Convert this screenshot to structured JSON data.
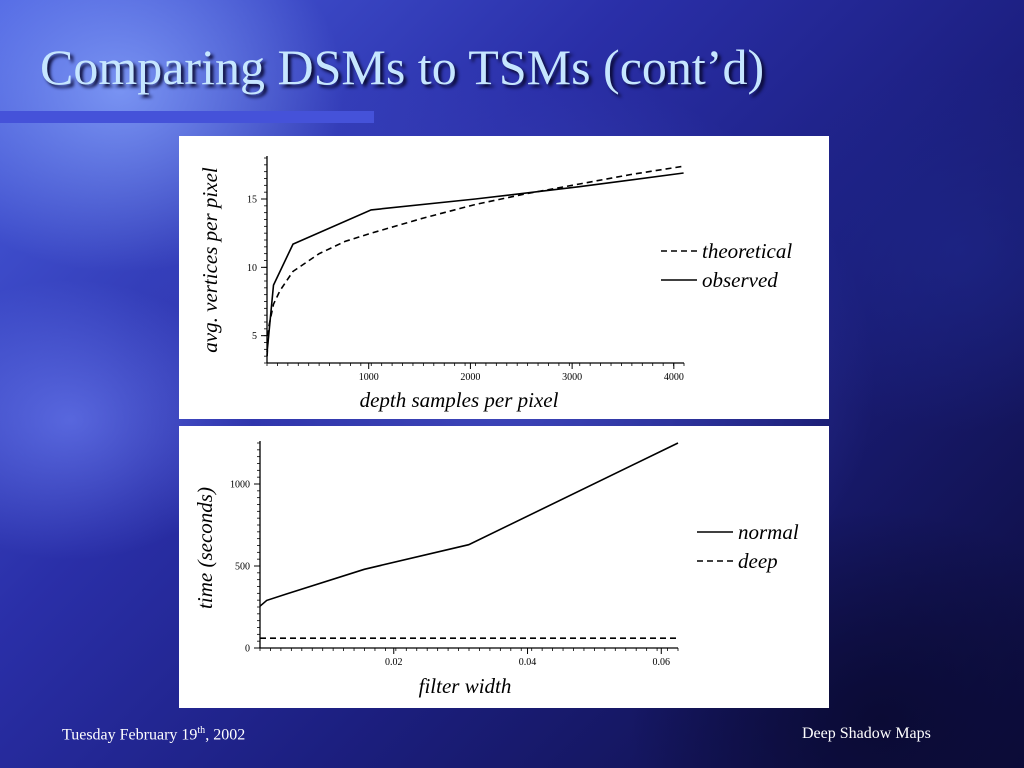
{
  "slide": {
    "title": "Comparing DSMs to TSMs (cont’d)",
    "footer_date_prefix": "Tuesday February 19",
    "footer_date_sup": "th",
    "footer_date_suffix": ", 2002",
    "footer_right": "Deep Shadow Maps"
  },
  "chart_data": [
    {
      "type": "line",
      "xlabel": "depth samples per pixel",
      "ylabel": "avg. vertices per pixel",
      "xlim": [
        0,
        4100
      ],
      "ylim": [
        3,
        18
      ],
      "xticks": [
        1000,
        2000,
        3000,
        4000
      ],
      "xtick_labels": [
        "1000",
        "2000",
        "3000",
        "4000"
      ],
      "yticks": [
        5,
        10,
        15
      ],
      "ytick_labels": [
        "5",
        "10",
        "15"
      ],
      "legend_position": "right",
      "series": [
        {
          "name": "theoretical",
          "style": "dashed",
          "x": [
            1,
            16,
            64,
            128,
            256,
            512,
            768,
            1024,
            1536,
            2048,
            2560,
            3072,
            3584,
            4096
          ],
          "y": [
            3.5,
            5.6,
            7.3,
            8.3,
            9.7,
            11.0,
            11.9,
            12.5,
            13.6,
            14.6,
            15.4,
            16.1,
            16.8,
            17.4
          ]
        },
        {
          "name": "observed",
          "style": "solid",
          "x": [
            1,
            64,
            256,
            1024,
            2048,
            3072,
            4096
          ],
          "y": [
            3.8,
            8.7,
            11.7,
            14.2,
            15.0,
            15.9,
            16.9
          ]
        }
      ]
    },
    {
      "type": "line",
      "xlabel": "filter width",
      "ylabel": "time (seconds)",
      "xlim": [
        0.0,
        0.0625
      ],
      "ylim": [
        0,
        1250
      ],
      "xticks": [
        0.02,
        0.04,
        0.06
      ],
      "xtick_labels": [
        "0.02",
        "0.04",
        "0.06"
      ],
      "yticks": [
        0,
        500,
        1000
      ],
      "ytick_labels": [
        "0",
        "500",
        "1000"
      ],
      "legend_position": "right",
      "series": [
        {
          "name": "normal",
          "style": "solid",
          "x": [
            0.0,
            0.001,
            0.004,
            0.0156,
            0.0312,
            0.0625
          ],
          "y": [
            255,
            290,
            330,
            480,
            630,
            1250
          ]
        },
        {
          "name": "deep",
          "style": "dashed",
          "x": [
            0.0,
            0.0625
          ],
          "y": [
            60,
            60
          ]
        }
      ]
    }
  ]
}
